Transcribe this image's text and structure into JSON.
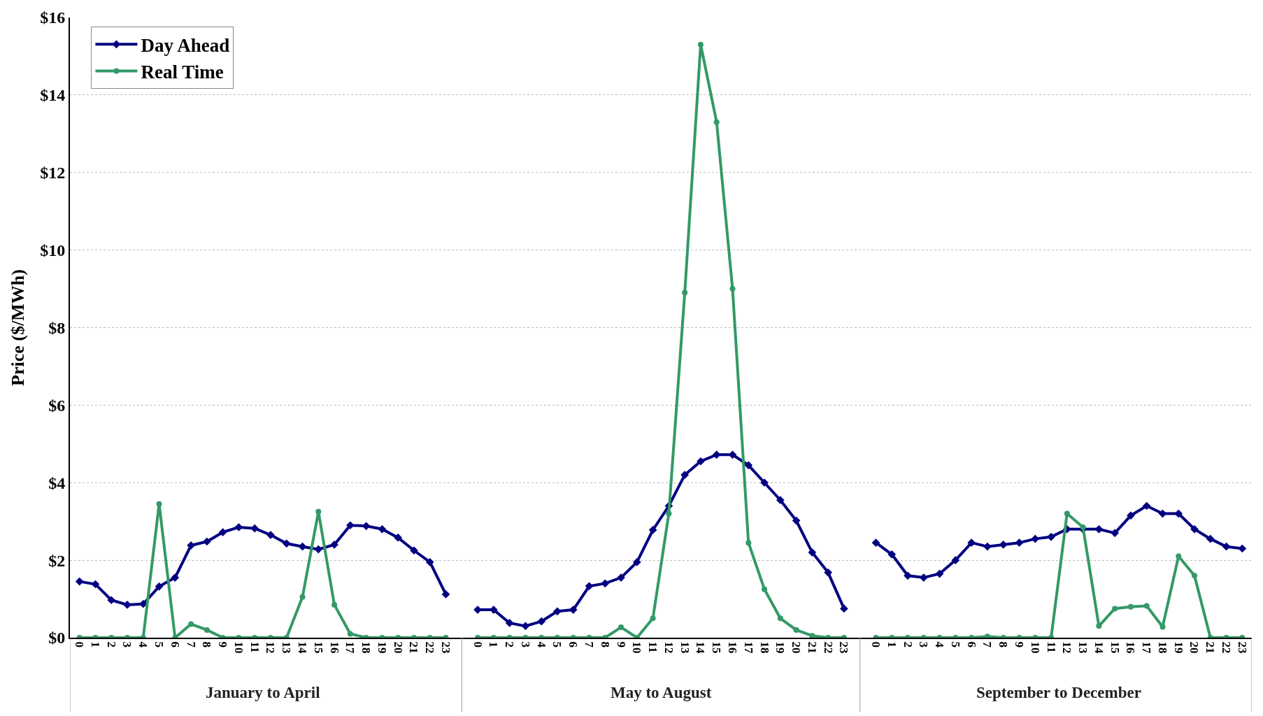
{
  "chart_data": {
    "type": "line",
    "ylabel": "Price ($/MWh)",
    "categories": [
      "0",
      "1",
      "2",
      "3",
      "4",
      "5",
      "6",
      "7",
      "8",
      "9",
      "10",
      "11",
      "12",
      "13",
      "14",
      "15",
      "16",
      "17",
      "18",
      "19",
      "20",
      "21",
      "22",
      "23",
      null,
      "0",
      "1",
      "2",
      "3",
      "4",
      "5",
      "6",
      "7",
      "8",
      "9",
      "10",
      "11",
      "12",
      "13",
      "14",
      "15",
      "16",
      "17",
      "18",
      "19",
      "20",
      "21",
      "22",
      "23",
      null,
      "0",
      "1",
      "2",
      "3",
      "4",
      "5",
      "6",
      "7",
      "8",
      "9",
      "10",
      "11",
      "12",
      "13",
      "14",
      "15",
      "16",
      "17",
      "18",
      "19",
      "20",
      "21",
      "22",
      "23"
    ],
    "series": [
      {
        "name": "Day Ahead",
        "color": "#000080",
        "marker": "diamond",
        "values": [
          1.45,
          1.38,
          0.97,
          0.85,
          0.87,
          1.32,
          1.55,
          2.38,
          2.48,
          2.72,
          2.85,
          2.82,
          2.65,
          2.43,
          2.35,
          2.28,
          2.4,
          2.9,
          2.88,
          2.8,
          2.58,
          2.25,
          1.95,
          1.12,
          null,
          0.72,
          0.72,
          0.38,
          0.3,
          0.42,
          0.68,
          0.72,
          1.33,
          1.4,
          1.55,
          1.95,
          2.78,
          3.4,
          4.2,
          4.55,
          4.72,
          4.72,
          4.45,
          4.0,
          3.55,
          3.02,
          2.2,
          1.68,
          0.75,
          null,
          2.45,
          2.15,
          1.6,
          1.55,
          1.65,
          2.0,
          2.45,
          2.35,
          2.4,
          2.45,
          2.55,
          2.6,
          2.8,
          2.8,
          2.8,
          2.7,
          3.15,
          3.4,
          3.2,
          3.2,
          2.8,
          2.55,
          2.35,
          2.3
        ]
      },
      {
        "name": "Real Time",
        "color": "#339966",
        "marker": "circle",
        "values": [
          0,
          0,
          0,
          0,
          0,
          3.45,
          0,
          0.35,
          0.2,
          0,
          0,
          0,
          0,
          0,
          1.05,
          3.25,
          0.85,
          0.1,
          0,
          0,
          0,
          0,
          0,
          0,
          null,
          0,
          0,
          0,
          0,
          0,
          0,
          0,
          0,
          0,
          0.27,
          0,
          0.5,
          3.2,
          8.9,
          15.3,
          13.3,
          9.0,
          2.45,
          1.25,
          0.5,
          0.2,
          0.05,
          0,
          0,
          null,
          0,
          0,
          0,
          0,
          0,
          0,
          0,
          0.03,
          0,
          0,
          0,
          0,
          3.2,
          2.85,
          0.3,
          0.75,
          0.8,
          0.82,
          0.28,
          2.1,
          1.6,
          0,
          0,
          0
        ]
      }
    ],
    "ylim": [
      0,
      16
    ],
    "yticks": [
      {
        "value": 0,
        "label": "$0"
      },
      {
        "value": 2,
        "label": "$2"
      },
      {
        "value": 4,
        "label": "$4"
      },
      {
        "value": 6,
        "label": "$6"
      },
      {
        "value": 8,
        "label": "$8"
      },
      {
        "value": 10,
        "label": "$10"
      },
      {
        "value": 12,
        "label": "$12"
      },
      {
        "value": 14,
        "label": "$14"
      },
      {
        "value": 16,
        "label": "$16"
      }
    ],
    "grid": "y",
    "legend": "top left",
    "line_style": "solid",
    "annotations": [
      "January to April",
      "May to August",
      "September to December"
    ]
  }
}
